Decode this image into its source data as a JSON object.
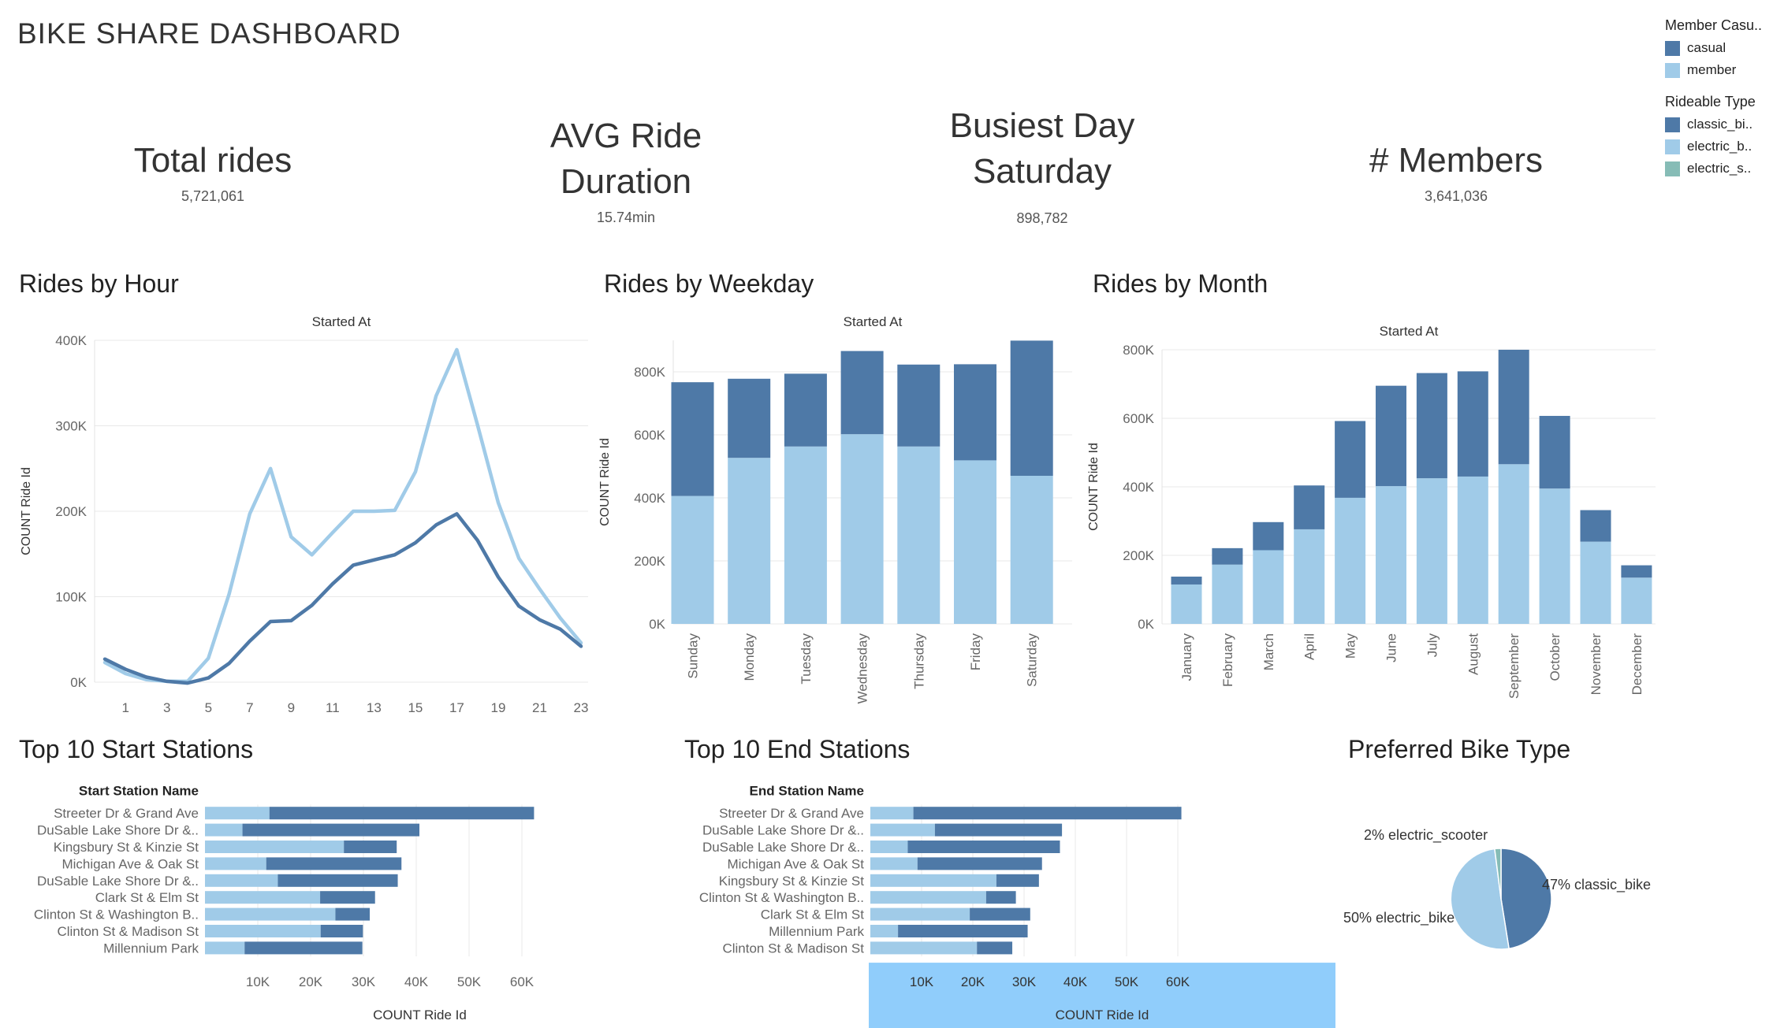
{
  "dashboard_title": "BIKE SHARE DASHBOARD",
  "kpis": {
    "total_rides": {
      "title": "Total rides",
      "value": "5,721,061"
    },
    "avg_duration": {
      "title_line1": "AVG Ride",
      "title_line2": "Duration",
      "value": "15.74min"
    },
    "busiest_day": {
      "title_line1": "Busiest Day",
      "title_line2": "Saturday",
      "value": "898,782"
    },
    "members": {
      "title": "# Members",
      "value": "3,641,036"
    }
  },
  "legend": {
    "member_casual": {
      "title": "Member Casu..",
      "items": [
        {
          "label": "casual",
          "color": "#4e79a7"
        },
        {
          "label": "member",
          "color": "#a0cbe8"
        }
      ]
    },
    "rideable_type": {
      "title": "Rideable Type",
      "items": [
        {
          "label": "classic_bi..",
          "color": "#4e79a7"
        },
        {
          "label": "electric_b..",
          "color": "#a0cbe8"
        },
        {
          "label": "electric_s..",
          "color": "#86bcb6"
        }
      ]
    }
  },
  "colors": {
    "casual": "#4e79a7",
    "member": "#a0cbe8",
    "scooter": "#86bcb6",
    "highlight": "#90cdfb",
    "grid": "#e8e8e8"
  },
  "sections": {
    "by_hour": "Rides by Hour",
    "by_weekday": "Rides by Weekday",
    "by_month": "Rides by Month",
    "top_start": "Top 10 Start Stations",
    "top_end": "Top 10 End Stations",
    "bike_type": "Preferred Bike Type"
  },
  "chart_data": [
    {
      "id": "hour",
      "type": "line",
      "title": "Started At",
      "ylabel": "COUNT Ride Id",
      "ylim": [
        0,
        400000
      ],
      "yticks": [
        0,
        100000,
        200000,
        300000,
        400000
      ],
      "ytick_labels": [
        "0K",
        "100K",
        "200K",
        "300K",
        "400K"
      ],
      "x": [
        0,
        1,
        2,
        3,
        4,
        5,
        6,
        7,
        8,
        9,
        10,
        11,
        12,
        13,
        14,
        15,
        16,
        17,
        18,
        19,
        20,
        21,
        22,
        23
      ],
      "xtick_labels": [
        "1",
        "3",
        "5",
        "7",
        "9",
        "11",
        "13",
        "15",
        "17",
        "19",
        "21",
        "23"
      ],
      "series": [
        {
          "name": "casual",
          "values": [
            27000,
            15000,
            6000,
            1000,
            -1000,
            5000,
            22000,
            48000,
            71000,
            72000,
            90000,
            115000,
            137000,
            143000,
            149000,
            163000,
            184000,
            197000,
            166000,
            123000,
            89000,
            73000,
            62000,
            42000
          ]
        },
        {
          "name": "member",
          "values": [
            23000,
            10000,
            3000,
            1000,
            1000,
            28000,
            103000,
            197000,
            250000,
            170000,
            149000,
            175000,
            200000,
            200000,
            201000,
            246000,
            335000,
            389000,
            301000,
            210000,
            145000,
            109000,
            75000,
            46000
          ]
        }
      ]
    },
    {
      "id": "weekday",
      "type": "bar",
      "stacked": true,
      "title": "Started At",
      "ylabel": "COUNT Ride Id",
      "ylim": [
        0,
        900000
      ],
      "yticks": [
        0,
        200000,
        400000,
        600000,
        800000
      ],
      "ytick_labels": [
        "0K",
        "200K",
        "400K",
        "600K",
        "800K"
      ],
      "categories": [
        "Sunday",
        "Monday",
        "Tuesday",
        "Wednesday",
        "Thursday",
        "Friday",
        "Saturday"
      ],
      "series": [
        {
          "name": "member",
          "values": [
            406000,
            527000,
            563000,
            602000,
            563000,
            519000,
            470000
          ]
        },
        {
          "name": "casual",
          "values": [
            361000,
            251000,
            231000,
            264000,
            260000,
            305000,
            429000
          ]
        }
      ]
    },
    {
      "id": "month",
      "type": "bar",
      "stacked": true,
      "title": "Started At",
      "ylabel": "COUNT Ride Id",
      "ylim": [
        0,
        800000
      ],
      "yticks": [
        0,
        200000,
        400000,
        600000,
        800000
      ],
      "ytick_labels": [
        "0K",
        "200K",
        "400K",
        "600K",
        "800K"
      ],
      "categories": [
        "January",
        "February",
        "March",
        "April",
        "May",
        "June",
        "July",
        "August",
        "September",
        "October",
        "November",
        "December"
      ],
      "series": [
        {
          "name": "member",
          "values": [
            115000,
            173000,
            215000,
            276000,
            368000,
            402000,
            425000,
            430000,
            466000,
            395000,
            240000,
            135000
          ]
        },
        {
          "name": "casual",
          "values": [
            23000,
            48000,
            82000,
            128000,
            224000,
            293000,
            307000,
            307000,
            334000,
            212000,
            92000,
            36000
          ]
        }
      ]
    },
    {
      "id": "start",
      "type": "bar",
      "orientation": "horizontal",
      "stacked": true,
      "row_header": "Start Station Name",
      "xlabel": "COUNT Ride Id",
      "xlim": [
        0,
        67000
      ],
      "xticks": [
        10000,
        20000,
        30000,
        40000,
        50000,
        60000
      ],
      "xtick_labels": [
        "10K",
        "20K",
        "30K",
        "40K",
        "50K",
        "60K"
      ],
      "categories": [
        "Streeter Dr & Grand Ave",
        "DuSable Lake Shore Dr &..",
        "Kingsbury St & Kinzie St",
        "Michigan Ave & Oak St",
        "DuSable Lake Shore Dr &..",
        "Clark St & Elm St",
        "Clinton St & Washington B..",
        "Clinton St & Madison St",
        "Millennium Park"
      ],
      "series": [
        {
          "name": "member",
          "values": [
            12200,
            7100,
            26300,
            11600,
            13800,
            21800,
            24700,
            21900,
            7500
          ]
        },
        {
          "name": "casual",
          "values": [
            50100,
            33500,
            10000,
            25600,
            22700,
            10400,
            6500,
            8000,
            22300
          ]
        }
      ]
    },
    {
      "id": "end",
      "type": "bar",
      "orientation": "horizontal",
      "stacked": true,
      "row_header": "End Station Name",
      "xlabel": "COUNT Ride Id",
      "xlim": [
        0,
        64000
      ],
      "xticks": [
        10000,
        20000,
        30000,
        40000,
        50000,
        60000
      ],
      "xtick_labels": [
        "10K",
        "20K",
        "30K",
        "40K",
        "50K",
        "60K"
      ],
      "categories": [
        "Streeter Dr & Grand Ave",
        "DuSable Lake Shore Dr &..",
        "DuSable Lake Shore Dr &..",
        "Michigan Ave & Oak St",
        "Kingsbury St & Kinzie St",
        "Clinton St & Washington B..",
        "Clark St & Elm St",
        "Millennium Park",
        "Clinton St & Madison St"
      ],
      "series": [
        {
          "name": "member",
          "values": [
            8400,
            12600,
            7300,
            9200,
            24600,
            22600,
            19400,
            5400,
            20800
          ]
        },
        {
          "name": "casual",
          "values": [
            52300,
            24800,
            29700,
            24300,
            8300,
            5800,
            11800,
            25300,
            6900
          ]
        }
      ]
    },
    {
      "id": "pie",
      "type": "pie",
      "labels": [
        "classic_bike",
        "electric_bike",
        "electric_scooter"
      ],
      "values": [
        47,
        50,
        2
      ],
      "slice_labels": [
        "47% classic_bike",
        "50% electric_bike",
        "2% electric_scooter"
      ]
    }
  ]
}
